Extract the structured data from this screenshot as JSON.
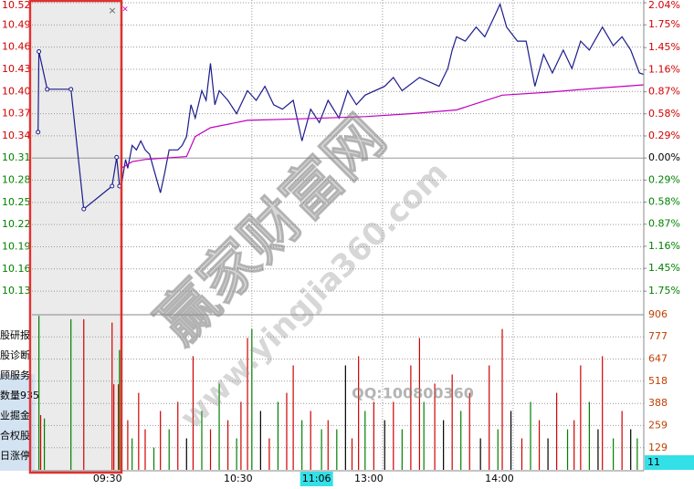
{
  "chart_data": [
    {
      "type": "line",
      "xlim": [
        -41,
        240
      ],
      "xticks": [
        {
          "value": 0,
          "label": "09:30"
        },
        {
          "value": 60,
          "label": "10:30"
        },
        {
          "value": 120,
          "label": "13:00"
        },
        {
          "value": 180,
          "label": "14:00"
        }
      ],
      "cursor": {
        "value": 96,
        "label": "11:06"
      },
      "ylim": [
        10.098,
        10.52
      ],
      "yticks": [
        10.52,
        10.49,
        10.46,
        10.43,
        {
          "value": 10.4,
          "label": "10.40"
        },
        10.37,
        10.34,
        10.31,
        10.28,
        10.25,
        10.22,
        10.19,
        10.16,
        10.13
      ],
      "y2lim": [
        -2.06,
        2.04
      ],
      "y2ticks": [
        {
          "value": 2.04,
          "label": "2.04%"
        },
        {
          "value": 1.75,
          "label": "1.75%"
        },
        {
          "value": 1.45,
          "label": "1.45%"
        },
        {
          "value": 1.16,
          "label": "1.16%"
        },
        {
          "value": 0.87,
          "label": "0.87%"
        },
        {
          "value": 0.58,
          "label": "0.58%"
        },
        {
          "value": 0.29,
          "label": "0.29%"
        },
        {
          "value": 0,
          "label": "0.00%"
        },
        {
          "value": -0.29,
          "label": "0.29%"
        },
        {
          "value": -0.58,
          "label": "0.58%"
        },
        {
          "value": -0.87,
          "label": "0.87%"
        },
        {
          "value": -1.16,
          "label": "1.16%"
        },
        {
          "value": -1.45,
          "label": "1.45%"
        },
        {
          "value": -1.75,
          "label": "1.75%"
        }
      ],
      "grid": true,
      "series": [
        {
          "color": "#1c1c8c",
          "x": [
            -38.2,
            -37.8,
            -34,
            -23.1,
            -17.2,
            -4.2,
            -2.1,
            -0.8
          ],
          "values": [
            10.345,
            10.454,
            10.403,
            10.403,
            10.241,
            10.272,
            10.311,
            10.272
          ]
        },
        {
          "color": "#1c1c8c",
          "x": [
            0,
            2,
            3,
            5,
            7,
            9,
            11,
            13,
            16,
            18,
            20,
            22,
            26,
            28,
            30,
            32,
            34,
            37,
            39,
            41,
            43,
            45,
            49,
            53,
            58,
            62,
            66,
            70,
            74,
            79,
            83,
            87,
            91,
            95,
            100,
            104,
            108,
            112,
            121,
            125,
            129,
            137,
            146,
            150,
            152,
            154,
            158,
            163,
            167,
            171,
            174,
            177,
            182,
            186,
            190,
            194,
            198,
            203,
            207,
            211,
            215,
            221,
            226,
            230,
            234,
            238,
            240
          ],
          "values": [
            10.272,
            10.308,
            10.296,
            10.327,
            10.321,
            10.333,
            10.321,
            10.315,
            10.284,
            10.263,
            10.29,
            10.321,
            10.321,
            10.327,
            10.339,
            10.382,
            10.364,
            10.401,
            10.388,
            10.438,
            10.382,
            10.401,
            10.388,
            10.37,
            10.401,
            10.388,
            10.407,
            10.382,
            10.376,
            10.388,
            10.333,
            10.376,
            10.358,
            10.388,
            10.364,
            10.401,
            10.382,
            10.395,
            10.407,
            10.419,
            10.401,
            10.419,
            10.407,
            10.431,
            10.456,
            10.474,
            10.468,
            10.487,
            10.474,
            10.499,
            10.518,
            10.487,
            10.468,
            10.468,
            10.407,
            10.45,
            10.425,
            10.456,
            10.431,
            10.468,
            10.456,
            10.487,
            10.462,
            10.474,
            10.456,
            10.425,
            10.423
          ]
        },
        {
          "color": "#c000c0",
          "x": [
            0,
            5,
            11,
            30,
            34,
            41,
            58,
            83,
            112,
            133,
            154,
            175,
            196,
            217,
            240
          ],
          "values": [
            10.296,
            10.305,
            10.308,
            10.312,
            10.339,
            10.351,
            10.361,
            10.363,
            10.366,
            10.37,
            10.375,
            10.395,
            10.399,
            10.404,
            10.409
          ]
        }
      ]
    },
    {
      "type": "bar",
      "xlim": [
        -41,
        240
      ],
      "ylim": [
        0,
        906
      ],
      "yticks": [
        906,
        777,
        647,
        518,
        388,
        259,
        129
      ],
      "grid": true,
      "cursor_value": 11,
      "x": [
        -37.8,
        -37,
        -35.3,
        -23.1,
        -17.2,
        -4.2,
        -3.4,
        -1.3,
        -0.8,
        0,
        3,
        5,
        8,
        11,
        15,
        18,
        22,
        26,
        30,
        33,
        37,
        41,
        45,
        49,
        53,
        55,
        58,
        60,
        64,
        68,
        72,
        76,
        79,
        83,
        87,
        92,
        95,
        99,
        103,
        106,
        109,
        112,
        116,
        121,
        125,
        129,
        133,
        137,
        139,
        144,
        148,
        152,
        156,
        160,
        165,
        169,
        173,
        175,
        179,
        184,
        188,
        192,
        196,
        200,
        205,
        208,
        211,
        215,
        219,
        221,
        226,
        230,
        234,
        237
      ],
      "values": [
        900,
        320,
        300,
        880,
        880,
        860,
        500,
        500,
        700,
        717,
        290,
        184,
        450,
        237,
        130,
        344,
        237,
        397,
        184,
        664,
        344,
        237,
        504,
        290,
        184,
        397,
        770,
        823,
        344,
        184,
        397,
        450,
        610,
        290,
        344,
        237,
        290,
        237,
        610,
        184,
        664,
        344,
        397,
        290,
        397,
        237,
        610,
        770,
        397,
        504,
        290,
        557,
        344,
        450,
        184,
        610,
        237,
        823,
        344,
        184,
        397,
        290,
        184,
        450,
        237,
        290,
        610,
        397,
        237,
        664,
        184,
        344,
        237,
        184
      ],
      "bar_colors": [
        "#008000",
        "#d00000",
        "#008000",
        "#008000",
        "#d00000",
        "#d00000",
        "#d00000",
        "#d00000",
        "#008000",
        "#000000",
        "#d00000",
        "#008000",
        "#d00000",
        "#d00000",
        "#008000",
        "#d00000",
        "#008000",
        "#d00000",
        "#000000",
        "#d00000",
        "#008000",
        "#d00000",
        "#008000",
        "#d00000",
        "#008000",
        "#d00000",
        "#d00000",
        "#008000",
        "#000000",
        "#d00000",
        "#008000",
        "#d00000",
        "#d00000",
        "#008000",
        "#d00000",
        "#008000",
        "#d00000",
        "#008000",
        "#000000",
        "#d00000",
        "#d00000",
        "#008000",
        "#d00000",
        "#000000",
        "#d00000",
        "#008000",
        "#d00000",
        "#d00000",
        "#008000",
        "#d00000",
        "#000000",
        "#d00000",
        "#008000",
        "#d00000",
        "#000000",
        "#d00000",
        "#008000",
        "#d00000",
        "#000000",
        "#d00000",
        "#008000",
        "#d00000",
        "#000000",
        "#d00000",
        "#008000",
        "#d00000",
        "#d00000",
        "#008000",
        "#000000",
        "#d00000",
        "#008000",
        "#d00000",
        "#000000",
        "#008000"
      ]
    }
  ],
  "side_menu": [
    "股研报",
    "股诊断",
    "顾服务",
    "数量935",
    "业掘金",
    "合权股",
    "日涨停"
  ],
  "watermark": {
    "site": "赢家财富网",
    "url": "www.yingjia360.com",
    "qq": "QQ:100800360"
  }
}
